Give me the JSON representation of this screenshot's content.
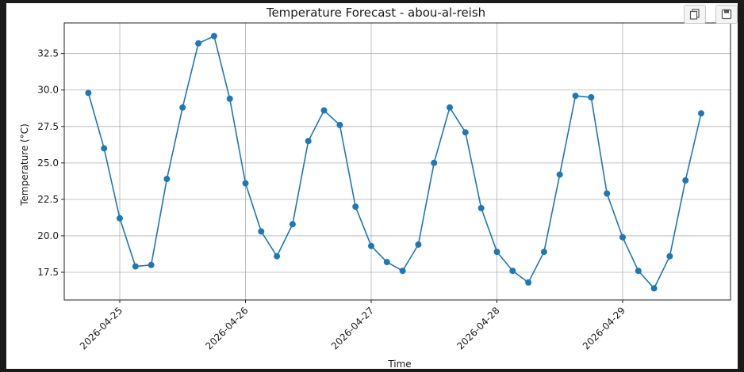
{
  "toolbar": {
    "copy_icon": "copy-icon",
    "save_icon": "save-icon"
  },
  "chart_data": {
    "type": "line",
    "title": "Temperature Forecast - abou-al-reish",
    "xlabel": "Time",
    "ylabel": "Temperature (°C)",
    "x_tick_labels": [
      "2026-04-25",
      "2026-04-26",
      "2026-04-27",
      "2026-04-28",
      "2026-04-29"
    ],
    "y_tick_labels": [
      "17.5",
      "20.0",
      "22.5",
      "25.0",
      "27.5",
      "30.0",
      "32.5"
    ],
    "ylim": [
      15.6,
      34.6
    ],
    "grid": true,
    "color": "#1f77b4",
    "x": [
      "2026-04-24 18:00",
      "2026-04-24 21:00",
      "2026-04-25 00:00",
      "2026-04-25 03:00",
      "2026-04-25 06:00",
      "2026-04-25 09:00",
      "2026-04-25 12:00",
      "2026-04-25 15:00",
      "2026-04-25 18:00",
      "2026-04-25 21:00",
      "2026-04-26 00:00",
      "2026-04-26 03:00",
      "2026-04-26 06:00",
      "2026-04-26 09:00",
      "2026-04-26 12:00",
      "2026-04-26 15:00",
      "2026-04-26 18:00",
      "2026-04-26 21:00",
      "2026-04-27 00:00",
      "2026-04-27 03:00",
      "2026-04-27 06:00",
      "2026-04-27 09:00",
      "2026-04-27 12:00",
      "2026-04-27 15:00",
      "2026-04-27 18:00",
      "2026-04-27 21:00",
      "2026-04-28 00:00",
      "2026-04-28 03:00",
      "2026-04-28 06:00",
      "2026-04-28 09:00",
      "2026-04-28 12:00",
      "2026-04-28 15:00",
      "2026-04-28 18:00",
      "2026-04-28 21:00",
      "2026-04-29 00:00",
      "2026-04-29 03:00",
      "2026-04-29 06:00",
      "2026-04-29 09:00",
      "2026-04-29 12:00",
      "2026-04-29 15:00"
    ],
    "y": [
      29.8,
      26.0,
      21.2,
      17.9,
      18.0,
      23.9,
      28.8,
      33.2,
      33.7,
      29.4,
      23.6,
      20.3,
      18.6,
      20.8,
      26.5,
      28.6,
      27.6,
      22.0,
      19.3,
      18.2,
      17.6,
      19.4,
      25.0,
      28.8,
      27.1,
      21.9,
      18.9,
      17.6,
      16.8,
      18.9,
      24.2,
      29.6,
      29.5,
      22.9,
      19.9,
      17.6,
      16.4,
      18.6,
      23.8,
      28.4
    ]
  }
}
